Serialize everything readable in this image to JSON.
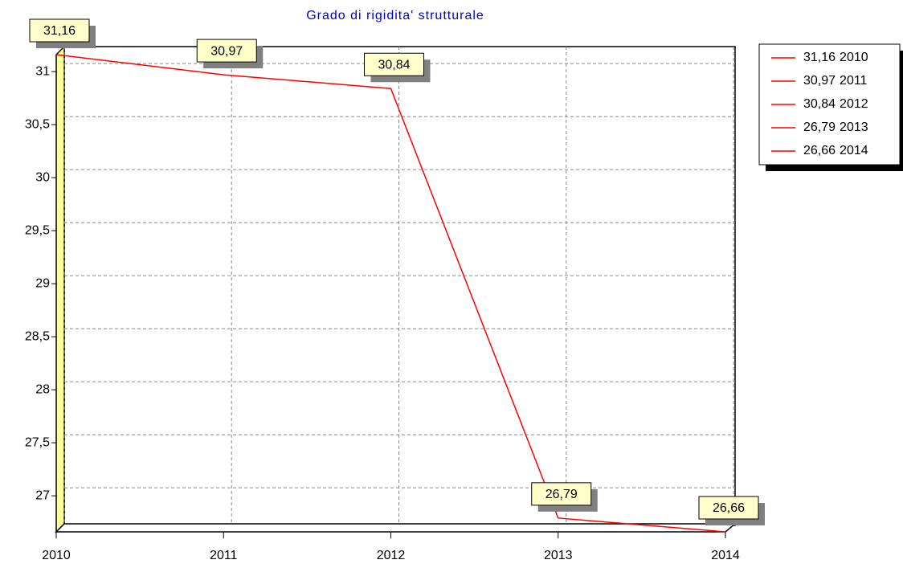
{
  "chart_data": {
    "type": "line",
    "title": "Grado di rigidita' strutturale",
    "x": [
      2010,
      2011,
      2012,
      2013,
      2014
    ],
    "series": [
      {
        "name": "Grado di rigidita' strutturale",
        "color": "#ff0000",
        "values": [
          31.16,
          30.97,
          30.84,
          26.79,
          26.66
        ],
        "value_labels": [
          "31,16",
          "30,97",
          "30,84",
          "26,79",
          "26,66"
        ]
      }
    ],
    "xlim": [
      2010,
      2014
    ],
    "xticks": [
      2010,
      2011,
      2012,
      2013,
      2014
    ],
    "ylim": [
      26.66,
      31.16
    ],
    "yticks": [
      27,
      {
        "value": 27.5,
        "label": "27,5"
      },
      28,
      {
        "value": 28.5,
        "label": "28,5"
      },
      29,
      {
        "value": 29.5,
        "label": "29,5"
      },
      30,
      {
        "value": 30.5,
        "label": "30,5"
      },
      31
    ],
    "grid": true,
    "legend": "right"
  }
}
